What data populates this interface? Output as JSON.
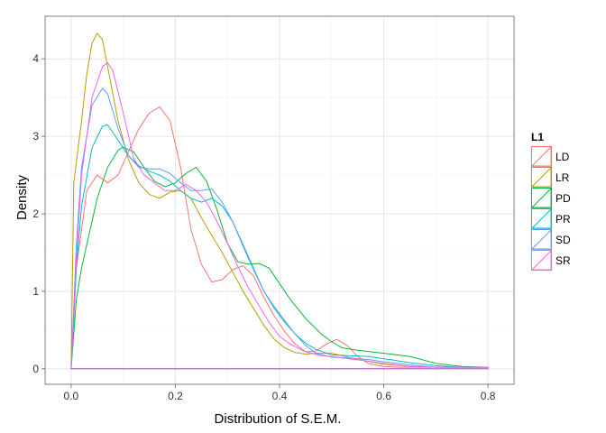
{
  "chart_data": {
    "type": "density",
    "title": "",
    "xlabel": "Distribution of S.E.M.",
    "ylabel": "Density",
    "xlim": [
      -0.05,
      0.85
    ],
    "ylim": [
      -0.2,
      4.55
    ],
    "x_ticks": [
      0.0,
      0.2,
      0.4,
      0.6,
      0.8
    ],
    "x_tick_labels": [
      "0.0",
      "0.2",
      "0.4",
      "0.6",
      "0.8"
    ],
    "y_ticks": [
      0,
      1,
      2,
      3,
      4
    ],
    "y_tick_labels": [
      "0",
      "1",
      "2",
      "3",
      "4"
    ],
    "grid": true,
    "legend": {
      "title": "L1",
      "position": "right"
    },
    "series": [
      {
        "name": "LD",
        "color": "#F8766D",
        "x": [
          0.0,
          0.01,
          0.03,
          0.05,
          0.07,
          0.09,
          0.11,
          0.13,
          0.15,
          0.17,
          0.19,
          0.21,
          0.23,
          0.25,
          0.27,
          0.29,
          0.31,
          0.33,
          0.35,
          0.37,
          0.39,
          0.41,
          0.43,
          0.45,
          0.47,
          0.49,
          0.51,
          0.53,
          0.55,
          0.57,
          0.6,
          0.63,
          0.66,
          0.7,
          0.75,
          0.8
        ],
        "y": [
          0.0,
          1.3,
          2.3,
          2.5,
          2.4,
          2.5,
          2.8,
          3.1,
          3.3,
          3.38,
          3.2,
          2.6,
          1.8,
          1.35,
          1.12,
          1.15,
          1.28,
          1.33,
          1.2,
          0.92,
          0.68,
          0.48,
          0.32,
          0.22,
          0.23,
          0.32,
          0.38,
          0.3,
          0.16,
          0.07,
          0.03,
          0.02,
          0.02,
          0.02,
          0.02,
          0.02
        ]
      },
      {
        "name": "LR",
        "color": "#B79F00",
        "x": [
          0.0,
          0.005,
          0.02,
          0.03,
          0.04,
          0.05,
          0.06,
          0.07,
          0.09,
          0.11,
          0.13,
          0.15,
          0.17,
          0.19,
          0.21,
          0.23,
          0.25,
          0.27,
          0.29,
          0.31,
          0.33,
          0.35,
          0.37,
          0.39,
          0.41,
          0.43,
          0.45,
          0.47,
          0.5,
          0.55,
          0.6,
          0.65,
          0.7,
          0.75,
          0.8
        ],
        "y": [
          0.0,
          2.4,
          3.2,
          3.8,
          4.2,
          4.33,
          4.25,
          3.9,
          3.2,
          2.7,
          2.4,
          2.25,
          2.2,
          2.28,
          2.3,
          2.2,
          1.95,
          1.72,
          1.5,
          1.25,
          1.0,
          0.78,
          0.56,
          0.38,
          0.27,
          0.21,
          0.19,
          0.2,
          0.2,
          0.12,
          0.06,
          0.03,
          0.02,
          0.02,
          0.02
        ]
      },
      {
        "name": "PD",
        "color": "#00BA38",
        "x": [
          0.0,
          0.01,
          0.02,
          0.03,
          0.05,
          0.07,
          0.09,
          0.1,
          0.12,
          0.14,
          0.16,
          0.18,
          0.2,
          0.22,
          0.24,
          0.26,
          0.28,
          0.3,
          0.32,
          0.34,
          0.36,
          0.38,
          0.4,
          0.42,
          0.45,
          0.48,
          0.5,
          0.52,
          0.55,
          0.6,
          0.65,
          0.7,
          0.75,
          0.8
        ],
        "y": [
          0.0,
          0.9,
          1.3,
          1.6,
          2.2,
          2.6,
          2.82,
          2.86,
          2.8,
          2.6,
          2.42,
          2.35,
          2.4,
          2.52,
          2.6,
          2.42,
          2.05,
          1.62,
          1.38,
          1.35,
          1.36,
          1.3,
          1.1,
          0.9,
          0.65,
          0.45,
          0.35,
          0.27,
          0.24,
          0.2,
          0.16,
          0.07,
          0.03,
          0.02
        ]
      },
      {
        "name": "PR",
        "color": "#00BFC4",
        "x": [
          0.0,
          0.01,
          0.02,
          0.04,
          0.06,
          0.07,
          0.09,
          0.11,
          0.13,
          0.15,
          0.17,
          0.19,
          0.21,
          0.23,
          0.25,
          0.27,
          0.29,
          0.31,
          0.33,
          0.35,
          0.37,
          0.39,
          0.41,
          0.43,
          0.45,
          0.47,
          0.5,
          0.53,
          0.57,
          0.6,
          0.65,
          0.7,
          0.75,
          0.8
        ],
        "y": [
          0.0,
          1.3,
          2.1,
          2.85,
          3.13,
          3.15,
          2.95,
          2.75,
          2.62,
          2.55,
          2.5,
          2.42,
          2.3,
          2.2,
          2.15,
          2.2,
          2.1,
          1.9,
          1.6,
          1.3,
          1.0,
          0.78,
          0.6,
          0.45,
          0.33,
          0.25,
          0.18,
          0.17,
          0.16,
          0.13,
          0.08,
          0.04,
          0.02,
          0.02
        ]
      },
      {
        "name": "SD",
        "color": "#619CFF",
        "x": [
          0.0,
          0.01,
          0.02,
          0.04,
          0.06,
          0.07,
          0.09,
          0.11,
          0.13,
          0.15,
          0.17,
          0.19,
          0.21,
          0.23,
          0.25,
          0.27,
          0.29,
          0.31,
          0.33,
          0.35,
          0.37,
          0.39,
          0.41,
          0.43,
          0.45,
          0.47,
          0.5,
          0.53,
          0.57,
          0.6,
          0.65,
          0.7,
          0.75,
          0.8
        ],
        "y": [
          0.0,
          1.6,
          2.6,
          3.4,
          3.62,
          3.55,
          3.1,
          2.75,
          2.6,
          2.58,
          2.58,
          2.52,
          2.4,
          2.3,
          2.3,
          2.32,
          2.15,
          1.9,
          1.58,
          1.28,
          1.0,
          0.8,
          0.62,
          0.45,
          0.3,
          0.2,
          0.15,
          0.14,
          0.12,
          0.09,
          0.05,
          0.02,
          0.02,
          0.02
        ]
      },
      {
        "name": "SR",
        "color": "#F564E3",
        "x": [
          0.0,
          0.01,
          0.02,
          0.04,
          0.06,
          0.07,
          0.08,
          0.1,
          0.12,
          0.14,
          0.16,
          0.18,
          0.2,
          0.22,
          0.24,
          0.26,
          0.28,
          0.3,
          0.32,
          0.34,
          0.36,
          0.38,
          0.4,
          0.42,
          0.45,
          0.48,
          0.5,
          0.53,
          0.57,
          0.6,
          0.65,
          0.7,
          0.75,
          0.8
        ],
        "y": [
          0.0,
          1.4,
          2.5,
          3.5,
          3.9,
          3.95,
          3.85,
          3.3,
          2.72,
          2.5,
          2.4,
          2.3,
          2.3,
          2.38,
          2.3,
          2.15,
          1.9,
          1.62,
          1.32,
          1.05,
          0.82,
          0.6,
          0.42,
          0.32,
          0.22,
          0.17,
          0.16,
          0.13,
          0.1,
          0.07,
          0.03,
          0.02,
          0.02,
          0.02
        ]
      }
    ]
  }
}
